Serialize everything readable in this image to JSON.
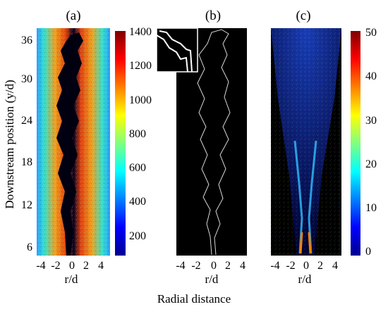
{
  "panels": {
    "a": {
      "label": "(a)",
      "xlabel": "r/d",
      "xticks": [
        "-4",
        "-2",
        "0",
        "2",
        "4"
      ],
      "yticks": [
        "36",
        "30",
        "24",
        "18",
        "12",
        "6"
      ],
      "colorbar": {
        "ticks": [
          "1400",
          "1200",
          "1000",
          "800",
          "600",
          "400",
          "200"
        ]
      }
    },
    "b": {
      "label": "(b)",
      "xlabel": "r/d",
      "xticks": [
        "-4",
        "-2",
        "0",
        "2",
        "4"
      ]
    },
    "c": {
      "label": "(c)",
      "xlabel": "r/d",
      "xticks": [
        "-4",
        "-2",
        "0",
        "2",
        "4"
      ],
      "colorbar": {
        "ticks": [
          "50",
          "40",
          "30",
          "20",
          "10",
          "0"
        ]
      }
    }
  },
  "ylabel": "Downstream position (y/d)",
  "bottom_label": "Radial distance",
  "colors": {
    "background": "#ffffff",
    "image_black": "#000000",
    "interface_line": "#d8d8d8"
  }
}
